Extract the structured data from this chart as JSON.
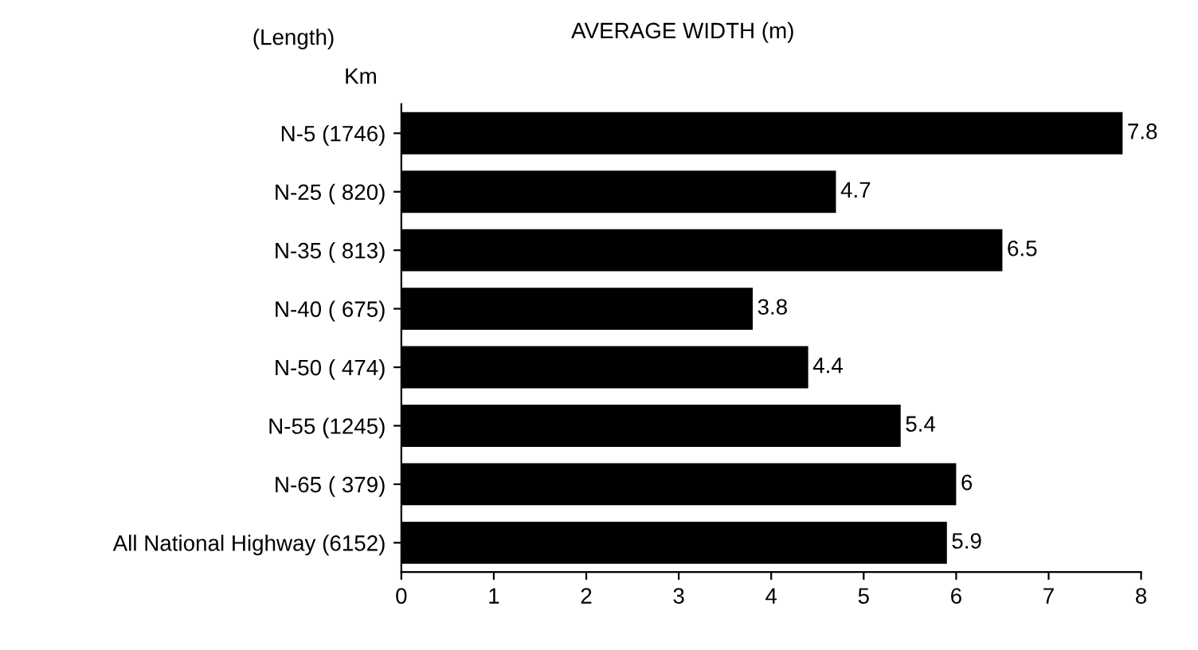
{
  "chart_data": {
    "type": "bar",
    "orientation": "horizontal",
    "title": "AVERAGE WIDTH (m)",
    "annotations": [
      "(Length)",
      "Km"
    ],
    "categories": [
      "N-5 (1746)",
      "N-25 ( 820)",
      "N-35 ( 813)",
      "N-40 ( 675)",
      "N-50 ( 474)",
      "N-55 (1245)",
      "N-65 ( 379)",
      "All National Highway (6152)"
    ],
    "values": [
      7.8,
      4.7,
      6.5,
      3.8,
      4.4,
      5.4,
      6,
      5.9
    ],
    "color": "#000000",
    "xlim": [
      0,
      8
    ],
    "xticks": [
      0,
      1,
      2,
      3,
      4,
      5,
      6,
      7,
      8
    ],
    "data_labels": true,
    "grid": false,
    "legend": false
  }
}
